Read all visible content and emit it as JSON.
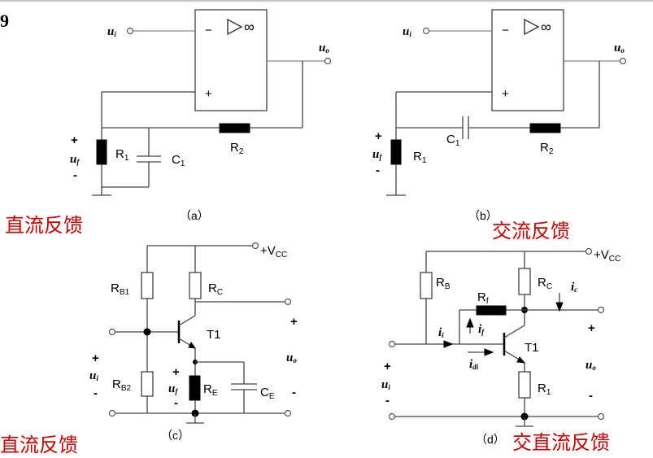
{
  "figure_number": "9",
  "panels": {
    "a": {
      "caption": "（a）",
      "feedback_type": "直流反馈",
      "labels": {
        "ui": "u",
        "ui_sub": "i",
        "uo": "u",
        "uo_sub": "o",
        "uf": "u",
        "uf_sub": "f",
        "plus": "+",
        "minus": "-",
        "R1": "R",
        "R1_sub": "1",
        "R2": "R",
        "R2_sub": "2",
        "C1": "C",
        "C1_sub": "1",
        "opamp_minus": "−",
        "opamp_plus": "+",
        "opamp_inf": "∞"
      }
    },
    "b": {
      "caption": "（b）",
      "feedback_type": "交流反馈",
      "labels": {
        "ui": "u",
        "ui_sub": "i",
        "uo": "u",
        "uo_sub": "o",
        "uf": "u",
        "uf_sub": "f",
        "plus": "+",
        "minus": "-",
        "R1": "R",
        "R1_sub": "1",
        "R2": "R",
        "R2_sub": "2",
        "C1": "C",
        "C1_sub": "1",
        "opamp_minus": "−",
        "opamp_plus": "+",
        "opamp_inf": "∞"
      }
    },
    "c": {
      "caption": "（c）",
      "feedback_type": "直流反馈",
      "labels": {
        "vcc": "+V",
        "vcc_sub": "CC",
        "RB1": "R",
        "RB1_sub": "B1",
        "RB2": "R",
        "RB2_sub": "B2",
        "RC": "R",
        "RC_sub": "C",
        "RE": "R",
        "RE_sub": "E",
        "CE": "C",
        "CE_sub": "E",
        "T1": "T1",
        "ui": "u",
        "ui_sub": "i",
        "uo": "u",
        "uo_sub": "o",
        "uf": "u",
        "uf_sub": "f",
        "plus": "+",
        "minus": "-"
      }
    },
    "d": {
      "caption": "（d）",
      "feedback_type": "交直流反馈",
      "labels": {
        "vcc": "+V",
        "vcc_sub": "CC",
        "RB": "R",
        "RB_sub": "B",
        "RC": "R",
        "RC_sub": "C",
        "Rf": "R",
        "Rf_sub": "f",
        "R1": "R",
        "R1_sub": "1",
        "T1": "T1",
        "ic": "i",
        "ic_sub": "c",
        "ii": "i",
        "ii_sub": "i",
        "if": "i",
        "if_sub": "f",
        "idi": "i",
        "idi_sub": "di",
        "ui": "u",
        "ui_sub": "i",
        "uo": "u",
        "uo_sub": "o",
        "plus": "+",
        "minus": "-"
      }
    }
  }
}
